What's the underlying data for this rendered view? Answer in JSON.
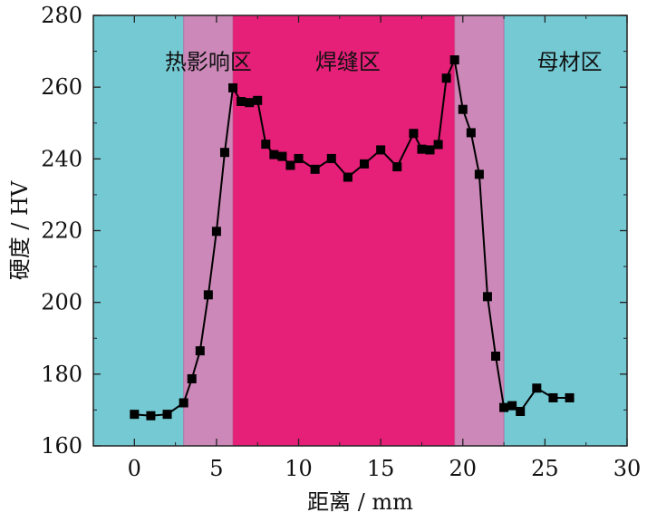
{
  "chart_data": {
    "type": "line",
    "title": "",
    "xlabel": "距离 / mm",
    "ylabel": "硬度 / HV",
    "xlim": [
      -2.5,
      30
    ],
    "ylim": [
      160,
      280
    ],
    "xticks": [
      0,
      5,
      10,
      15,
      20,
      25,
      30
    ],
    "yticks": [
      160,
      180,
      200,
      220,
      240,
      260,
      280
    ],
    "grid": false,
    "legend": "none",
    "regions": [
      {
        "label": "",
        "x0": -2.5,
        "x1": 3.0,
        "color": "#74C9D3"
      },
      {
        "label": "热影响区",
        "x0": 3.0,
        "x1": 6.0,
        "color": "#CB88B8"
      },
      {
        "label": "焊缝区",
        "x0": 6.0,
        "x1": 19.5,
        "color": "#E61F78"
      },
      {
        "label": "",
        "x0": 19.5,
        "x1": 22.5,
        "color": "#CB88B8"
      },
      {
        "label": "母材区",
        "x0": 22.5,
        "x1": 30.0,
        "color": "#74C9D3"
      }
    ],
    "region_labels": [
      {
        "text": "热影响区",
        "x": 4.5,
        "y": 267
      },
      {
        "text": "焊缝区",
        "x": 13.0,
        "y": 267
      },
      {
        "text": "母材区",
        "x": 26.5,
        "y": 267
      }
    ],
    "series": [
      {
        "name": "Hardness profile",
        "marker": "square",
        "color": "#000000",
        "segments": [
          {
            "x": [
              0,
              1,
              2,
              3,
              3.5,
              4,
              4.5,
              5,
              5.5,
              6,
              6.5,
              7,
              7.5,
              8,
              8.5,
              9,
              9.5,
              10,
              11,
              12,
              13,
              14,
              15,
              16,
              17,
              17.5,
              18,
              18.5,
              19,
              19.5,
              20,
              20.5,
              21,
              21.5,
              22,
              22.5
            ],
            "y": [
              168.8,
              168.4,
              168.8,
              172.0,
              178.7,
              186.5,
              202.1,
              219.8,
              241.8,
              259.8,
              256.0,
              255.7,
              256.3,
              244.1,
              241.2,
              240.7,
              238.2,
              240.1,
              237.1,
              240.1,
              234.9,
              238.6,
              242.5,
              237.8,
              247.1,
              242.7,
              242.5,
              244.0,
              262.5,
              267.6,
              253.8,
              247.3,
              235.7,
              201.6,
              185.0,
              170.7
            ]
          },
          {
            "x": [
              23.0,
              23.5,
              24.5,
              25.5,
              26.5
            ],
            "y": [
              171.2,
              169.6,
              176.1,
              173.4,
              173.4
            ]
          }
        ]
      }
    ]
  }
}
